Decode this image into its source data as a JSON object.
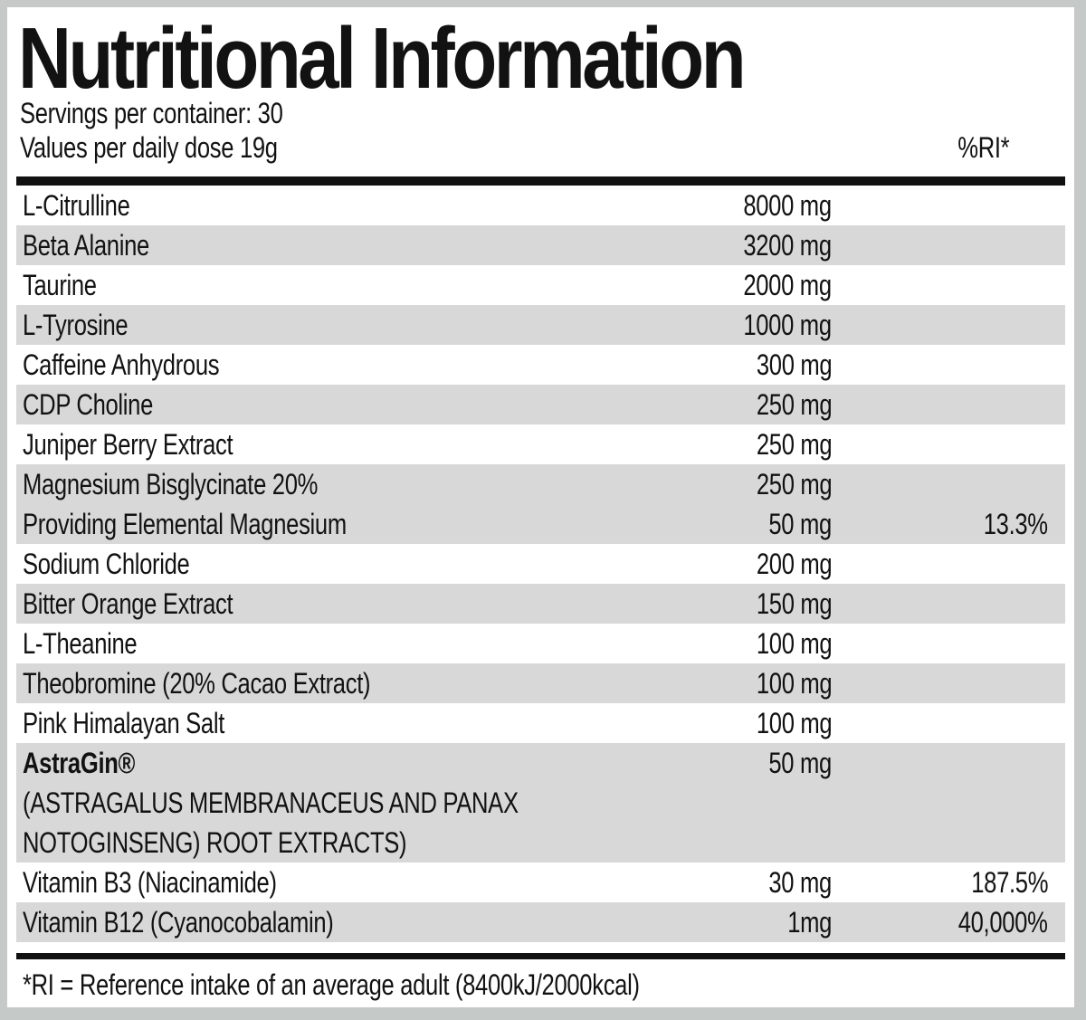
{
  "label": {
    "title": "Nutritional Information",
    "servings_line": "Servings per container: 30",
    "values_line": "Values per daily dose 19g",
    "ri_header": "%RI*",
    "footnote": "*RI = Reference intake of an average adult (8400kJ/2000kcal)"
  },
  "table": {
    "rows": [
      {
        "name": "L-Citrulline",
        "amount": "8000 mg",
        "ri": "",
        "shaded": false,
        "bold": false
      },
      {
        "name": "Beta Alanine",
        "amount": "3200 mg",
        "ri": "",
        "shaded": true,
        "bold": false
      },
      {
        "name": "Taurine",
        "amount": "2000 mg",
        "ri": "",
        "shaded": false,
        "bold": false
      },
      {
        "name": "L-Tyrosine",
        "amount": "1000 mg",
        "ri": "",
        "shaded": true,
        "bold": false
      },
      {
        "name": "Caffeine Anhydrous",
        "amount": "300 mg",
        "ri": "",
        "shaded": false,
        "bold": false
      },
      {
        "name": "CDP Choline",
        "amount": "250 mg",
        "ri": "",
        "shaded": true,
        "bold": false
      },
      {
        "name": "Juniper Berry Extract",
        "amount": "250 mg",
        "ri": "",
        "shaded": false,
        "bold": false
      },
      {
        "name": "Magnesium Bisglycinate 20%",
        "amount": "250 mg",
        "ri": "",
        "shaded": true,
        "bold": false
      },
      {
        "name": "Providing Elemental Magnesium",
        "amount": "50 mg",
        "ri": "13.3%",
        "shaded": true,
        "bold": false
      },
      {
        "name": "Sodium Chloride",
        "amount": "200 mg",
        "ri": "",
        "shaded": false,
        "bold": false
      },
      {
        "name": "Bitter Orange Extract",
        "amount": "150 mg",
        "ri": "",
        "shaded": true,
        "bold": false
      },
      {
        "name": "L-Theanine",
        "amount": "100 mg",
        "ri": "",
        "shaded": false,
        "bold": false
      },
      {
        "name": "Theobromine (20% Cacao Extract)",
        "amount": "100 mg",
        "ri": "",
        "shaded": true,
        "bold": false
      },
      {
        "name": "Pink Himalayan Salt",
        "amount": "100 mg",
        "ri": "",
        "shaded": false,
        "bold": false
      },
      {
        "name": "AstraGin®",
        "amount": "50 mg",
        "ri": "",
        "shaded": true,
        "bold": true,
        "sublines": [
          "(ASTRAGALUS MEMBRANACEUS AND PANAX",
          "NOTOGINSENG) ROOT EXTRACTS)"
        ]
      },
      {
        "name": "Vitamin B3 (Niacinamide)",
        "amount": "30 mg",
        "ri": "187.5%",
        "shaded": false,
        "bold": false
      },
      {
        "name": "Vitamin B12 (Cyanocobalamin)",
        "amount": "1mg",
        "ri": "40,000%",
        "shaded": true,
        "bold": false
      }
    ]
  },
  "colors": {
    "page_background": "#c5c9c8",
    "panel_background": "#ffffff",
    "row_shade": "#d8d8d8",
    "text": "#121212",
    "rule": "#111111"
  }
}
